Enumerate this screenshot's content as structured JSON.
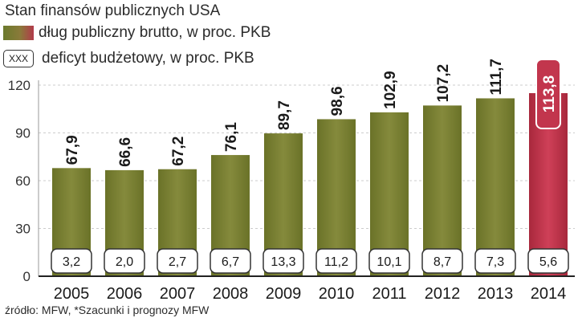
{
  "title": "Stan finansów publicznych USA",
  "legend": {
    "debt_label": "dług publiczny brutto, w proc. PKB",
    "deficit_label": "deficyt budżetowy, w proc. PKB",
    "deficit_swatch_text": "XXX"
  },
  "source": "źródło: MFW, *Szacunki i prognozy MFW",
  "colors": {
    "bar": "#7d7d34",
    "bar_forecast": "#c2364d",
    "axis": "#222222",
    "grid": "#cccccc"
  },
  "chart_data": {
    "type": "bar",
    "title": "Stan finansów publicznych USA",
    "categories": [
      "2005",
      "2006",
      "2007",
      "2008",
      "2009",
      "2010",
      "2011",
      "2012",
      "2013",
      "2014"
    ],
    "series": [
      {
        "name": "dług publiczny brutto, w proc. PKB",
        "values": [
          67.9,
          66.6,
          67.2,
          76.1,
          89.7,
          98.6,
          102.9,
          107.2,
          111.7,
          113.8
        ],
        "labels": [
          "67,9",
          "66,6",
          "67,2",
          "76,1",
          "89,7",
          "98,6",
          "102,9",
          "107,2",
          "111,7",
          "113,8"
        ]
      },
      {
        "name": "deficyt budżetowy, w proc. PKB",
        "values": [
          3.2,
          2.0,
          2.7,
          6.7,
          13.3,
          11.2,
          10.1,
          8.7,
          7.3,
          5.6
        ],
        "labels": [
          "3,2",
          "2,0",
          "2,7",
          "6,7",
          "13,3",
          "11,2",
          "10,1",
          "8,7",
          "7,3",
          "5,6"
        ]
      }
    ],
    "forecast_category": "2014",
    "yticks": [
      "0",
      "30",
      "60",
      "90",
      "120"
    ],
    "ylim": [
      0,
      120
    ],
    "xlabel": "",
    "ylabel": "",
    "grid": true
  }
}
